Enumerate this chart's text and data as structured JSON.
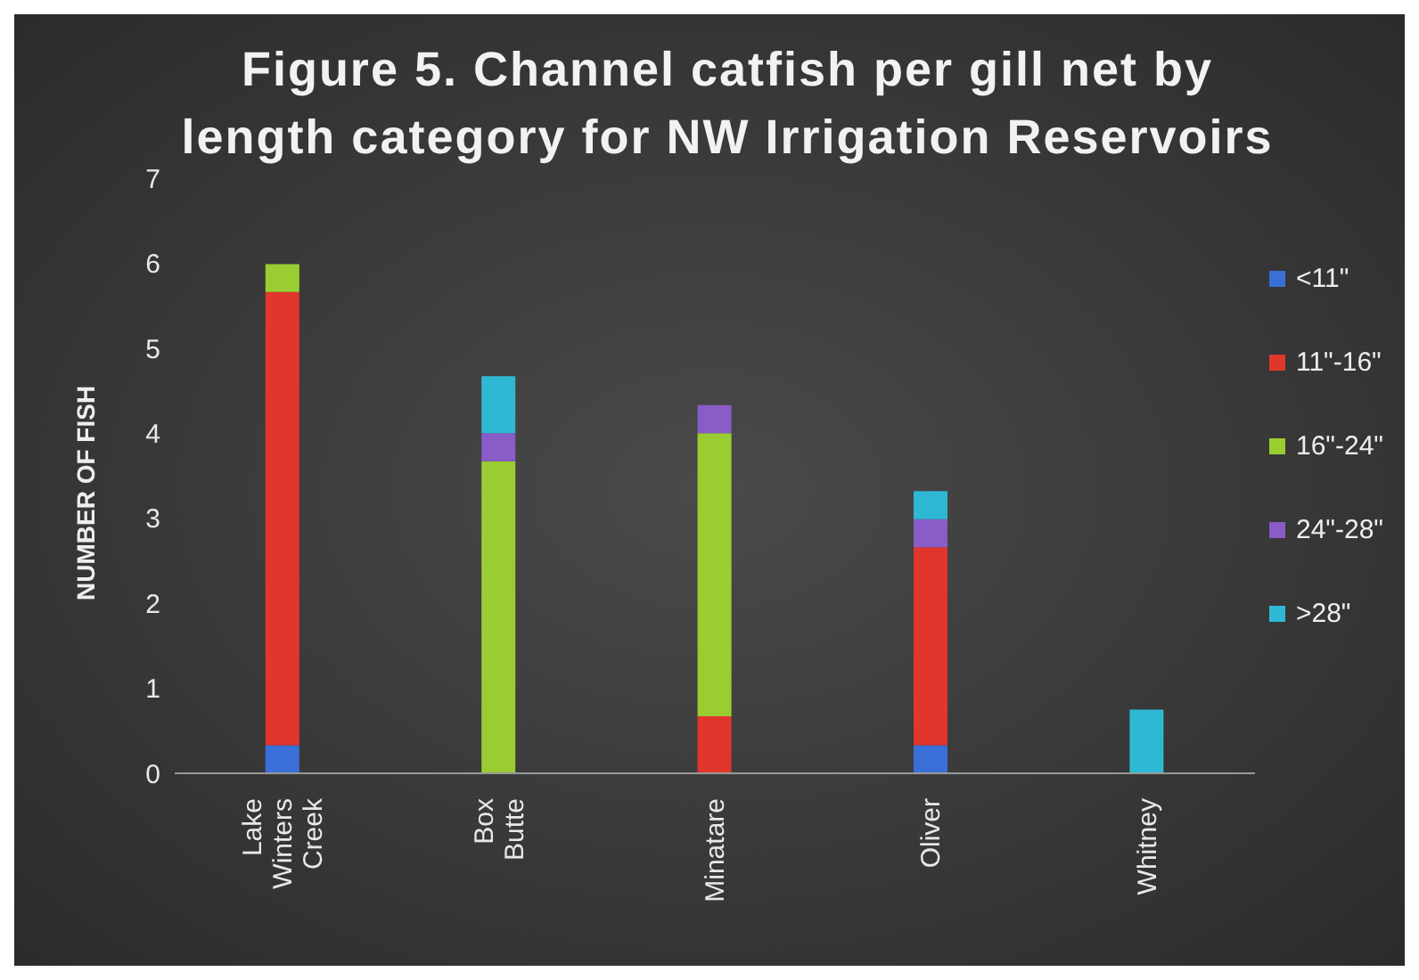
{
  "chart_data": {
    "type": "bar",
    "stacked": true,
    "title": "Figure 5. Channel catfish per gill net by length category for NW Irrigation Reservoirs",
    "ylabel": "NUMBER OF FISH",
    "categories": [
      "Lake Winters Creek",
      "Box Butte",
      "Minatare",
      "Oliver",
      "Whitney"
    ],
    "series": [
      {
        "name": "<11\"",
        "color": "#3a6fd8",
        "values": [
          0.33,
          null,
          null,
          0.33,
          null
        ]
      },
      {
        "name": "11\"-16\"",
        "color": "#e0362c",
        "values": [
          5.33,
          null,
          0.67,
          2.33,
          null
        ]
      },
      {
        "name": "16\"-24\"",
        "color": "#9acd32",
        "values": [
          0.33,
          3.67,
          3.33,
          null,
          null
        ]
      },
      {
        "name": "24\"-28\"",
        "color": "#8a5cc7",
        "values": [
          null,
          0.33,
          0.33,
          0.33,
          null
        ]
      },
      {
        "name": ">28\"",
        "color": "#2fb8d4",
        "values": [
          null,
          0.67,
          null,
          0.33,
          0.75
        ]
      }
    ],
    "ylim": [
      0,
      7
    ],
    "yticks": [
      0,
      1,
      2,
      3,
      4,
      5,
      6,
      7
    ],
    "grid": false,
    "legend": "right"
  }
}
